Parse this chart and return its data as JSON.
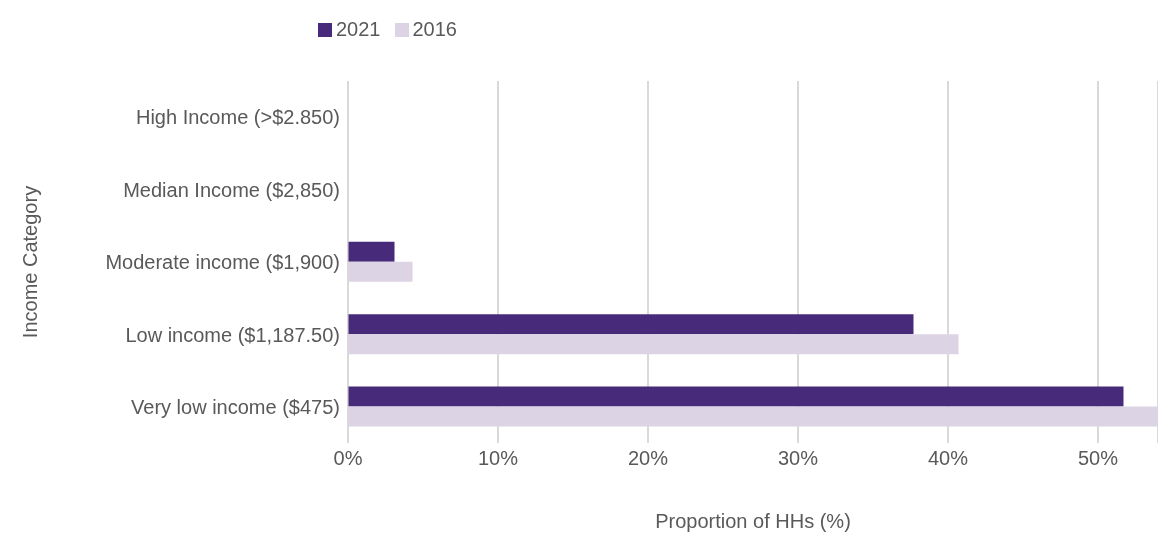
{
  "chart_data": {
    "type": "bar",
    "orientation": "horizontal",
    "xlabel": "Proportion of HHs (%)",
    "ylabel": "Income Category",
    "categories": [
      "High Income (>$2.850)",
      "Median Income ($2,850)",
      "Moderate income ($1,900)",
      "Low income ($1,187.50)",
      "Very low income ($475)"
    ],
    "series": [
      {
        "name": "2021",
        "color": "#482a7a",
        "values": [
          0,
          0,
          3.1,
          37.7,
          51.7
        ]
      },
      {
        "name": "2016",
        "color": "#dcd4e4",
        "values": [
          0,
          0,
          4.3,
          40.7,
          54
        ]
      }
    ],
    "xlim": [
      0,
      54
    ],
    "xticks": [
      {
        "value": 0,
        "label": "0%"
      },
      {
        "value": 10,
        "label": "10%"
      },
      {
        "value": 20,
        "label": "20%"
      },
      {
        "value": 30,
        "label": "30%"
      },
      {
        "value": 40,
        "label": "40%"
      },
      {
        "value": 50,
        "label": "50%"
      }
    ],
    "grid": "x",
    "legend": "top left"
  }
}
